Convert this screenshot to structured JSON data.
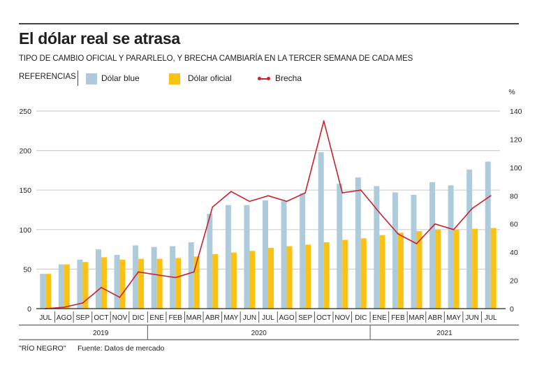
{
  "header": {
    "title": "El dólar real se atrasa",
    "subtitle": "TIPO DE CAMBIO OFICIAL Y PARARLELO, Y BRECHA CAMBIARÍA EN LA TERCER SEMANA DE CADA MES"
  },
  "legend": {
    "label": "REFERENCIAS",
    "items": [
      {
        "name": "Dólar blue",
        "color": "#aecbdb"
      },
      {
        "name": "Dólar oficial",
        "color": "#fcc213"
      },
      {
        "name": "Brecha",
        "color": "#c9202c"
      }
    ]
  },
  "footer": {
    "credit": "\"RÍO NEGRO\"",
    "source": "Fuente: Datos de mercado"
  },
  "chart_data": {
    "type": "bar",
    "title": "El dólar real se atrasa",
    "subtitle": "TIPO DE CAMBIO OFICIAL Y PARARLELO, Y BRECHA CAMBIARÍA EN LA TERCER SEMANA DE CADA MES",
    "categories": [
      "JUL",
      "AGO",
      "SEP",
      "OCT",
      "NOV",
      "DIC",
      "ENE",
      "FEB",
      "MAR",
      "ABR",
      "MAY",
      "JUN",
      "JUL",
      "AGO",
      "SEP",
      "OCT",
      "NOV",
      "DIC",
      "ENE",
      "FEB",
      "MAR",
      "ABR",
      "MAY",
      "JUN",
      "JUL"
    ],
    "year_groups": [
      {
        "label": "2019",
        "count": 6
      },
      {
        "label": "2020",
        "count": 12
      },
      {
        "label": "2021",
        "count": 7
      }
    ],
    "series": [
      {
        "name": "Dólar blue",
        "type": "bar",
        "axis": "left",
        "color": "#aecbdb",
        "values": [
          44,
          56,
          62,
          75,
          68,
          80,
          78,
          79,
          84,
          120,
          131,
          131,
          137,
          136,
          146,
          198,
          158,
          166,
          155,
          147,
          144,
          160,
          156,
          176,
          186
        ]
      },
      {
        "name": "Dólar oficial",
        "type": "bar",
        "axis": "left",
        "color": "#fcc213",
        "values": [
          44,
          56,
          59,
          65,
          62,
          63,
          63,
          64,
          66,
          69,
          71,
          73,
          77,
          79,
          81,
          84,
          87,
          89,
          93,
          96,
          98,
          100,
          100,
          101,
          102
        ]
      },
      {
        "name": "Brecha",
        "type": "line",
        "axis": "right",
        "color": "#c9202c",
        "values": [
          0,
          1,
          4,
          15,
          8,
          26,
          24,
          22,
          26,
          72,
          83,
          76,
          80,
          76,
          82,
          133,
          82,
          84,
          68,
          53,
          46,
          60,
          56,
          71,
          80
        ]
      }
    ],
    "left_axis": {
      "ylim": [
        0,
        250
      ],
      "ticks": [
        0,
        50,
        100,
        150,
        200,
        250
      ]
    },
    "right_axis": {
      "label": "%",
      "ylim": [
        0,
        140
      ],
      "ticks": [
        0,
        20,
        40,
        60,
        80,
        100,
        120,
        140
      ]
    },
    "grid": true,
    "legend_position": "top-left"
  }
}
